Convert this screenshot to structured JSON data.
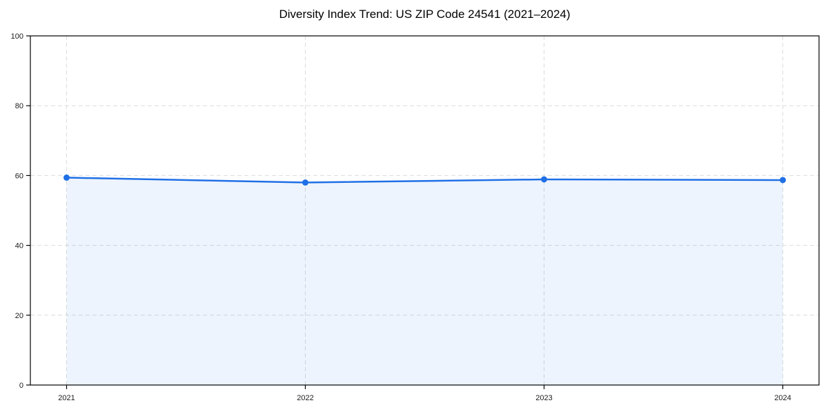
{
  "chart_data": {
    "type": "area",
    "title": "Diversity Index Trend: US ZIP Code 24541 (2021–2024)",
    "series_name": "Diversity Index",
    "categories": [
      "2021",
      "2022",
      "2023",
      "2024"
    ],
    "values": [
      59.4,
      58.0,
      58.9,
      58.7
    ],
    "xlabel": "",
    "ylabel": "",
    "ylim": [
      0,
      100
    ],
    "yticks": [
      0,
      20,
      40,
      60,
      80,
      100
    ],
    "grid": true,
    "grid_style": "dashed",
    "legend_position": "none",
    "colors": {
      "line": "#1f6fe6",
      "marker": "#1f6fe6",
      "fill": "rgba(31,111,230,0.08)",
      "gridline": "#dcdcdc",
      "axis_border": "#000000",
      "tick_text": "#1a1a1a",
      "background": "#ffffff"
    }
  }
}
